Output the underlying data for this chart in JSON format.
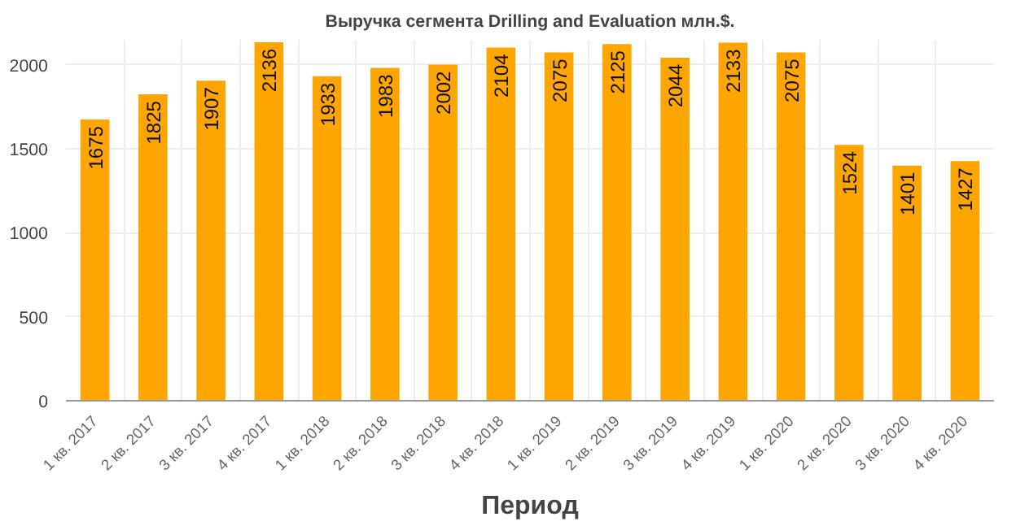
{
  "chart_data": {
    "type": "bar",
    "title": "Выручка сегмента Drilling and Evaluation млн.$.",
    "xlabel": "Период",
    "categories": [
      "1 кв. 2017",
      "2 кв. 2017",
      "3 кв. 2017",
      "4 кв. 2017",
      "1 кв. 2018",
      "2 кв. 2018",
      "3 кв. 2018",
      "4 кв. 2018",
      "1 кв. 2019",
      "2 кв. 2019",
      "3 кв. 2019",
      "4 кв. 2019",
      "1 кв. 2020",
      "2 кв. 2020",
      "3 кв. 2020",
      "4 кв. 2020"
    ],
    "values": [
      1675,
      1825,
      1907,
      2136,
      1933,
      1983,
      2002,
      2104,
      2075,
      2125,
      2044,
      2133,
      2075,
      1524,
      1401,
      1427
    ],
    "color": "#ffa500",
    "ylim": [
      0,
      2150
    ],
    "yticks": [
      0,
      500,
      1000,
      1500,
      2000
    ],
    "grid": true,
    "data_labels": true
  }
}
